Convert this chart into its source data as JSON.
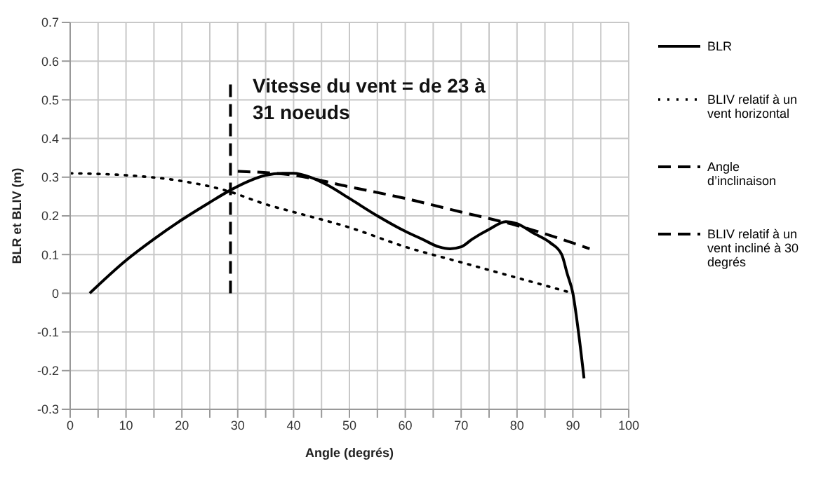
{
  "chart_data": {
    "type": "line",
    "xlabel": "Angle (degrés)",
    "ylabel": "BLR et BLIV (m)",
    "xlim": [
      0,
      100
    ],
    "xticks": [
      0,
      {
        "value": 5,
        "label": null
      },
      10,
      {
        "value": 15,
        "label": null
      },
      20,
      {
        "value": 25,
        "label": null
      },
      30,
      {
        "value": 35,
        "label": null
      },
      40,
      {
        "value": 45,
        "label": null
      },
      50,
      {
        "value": 55,
        "label": null
      },
      60,
      {
        "value": 65,
        "label": null
      },
      70,
      {
        "value": 75,
        "label": null
      },
      80,
      {
        "value": 85,
        "label": null
      },
      90,
      {
        "value": 95,
        "label": null
      },
      100
    ],
    "ylim": [
      -0.3,
      0.7
    ],
    "yticks": [
      -0.3,
      -0.2,
      -0.1,
      0,
      0.1,
      0.2,
      0.3,
      0.4,
      0.5,
      0.6,
      0.7
    ],
    "grid": true,
    "legend": "right",
    "marker": "none",
    "annotations": [
      "Vitesse du vent = de 23 à 31 noeuds"
    ],
    "series": [
      {
        "name": "BLR",
        "color": "#000000",
        "line_style": "solid",
        "x": [
          3.5,
          10,
          15,
          20,
          25,
          28.5,
          32,
          35,
          38,
          40,
          43,
          46,
          50,
          55,
          60,
          63,
          66,
          68,
          70,
          72,
          75,
          78,
          80,
          83,
          86,
          88,
          89,
          90,
          91,
          92
        ],
        "values": [
          0,
          0.085,
          0.14,
          0.19,
          0.235,
          0.265,
          0.29,
          0.305,
          0.31,
          0.31,
          0.3,
          0.28,
          0.245,
          0.2,
          0.16,
          0.14,
          0.12,
          0.115,
          0.12,
          0.14,
          0.165,
          0.185,
          0.18,
          0.155,
          0.13,
          0.1,
          0.05,
          0,
          -0.1,
          -0.22
        ]
      },
      {
        "name": "BLIV relatif à un vent horizontal",
        "color": "#000000",
        "line_style": "dotted",
        "x": [
          0,
          10,
          20,
          28,
          35,
          40,
          50,
          60,
          70,
          80,
          85,
          90
        ],
        "values": [
          0.31,
          0.305,
          0.29,
          0.265,
          0.23,
          0.21,
          0.17,
          0.12,
          0.08,
          0.04,
          0.02,
          0
        ]
      },
      {
        "name": "Angle d’inclinaison",
        "color": "#000000",
        "line_style": "dashed",
        "x": [
          28.7,
          28.7
        ],
        "values": [
          0,
          0.55
        ]
      },
      {
        "name": "BLIV relatif à un vent incliné à 30 degrés",
        "color": "#000000",
        "line_style": "dashed",
        "x": [
          30,
          40,
          50,
          60,
          70,
          80,
          90,
          93
        ],
        "values": [
          0.315,
          0.305,
          0.275,
          0.245,
          0.21,
          0.175,
          0.13,
          0.115
        ]
      }
    ]
  }
}
